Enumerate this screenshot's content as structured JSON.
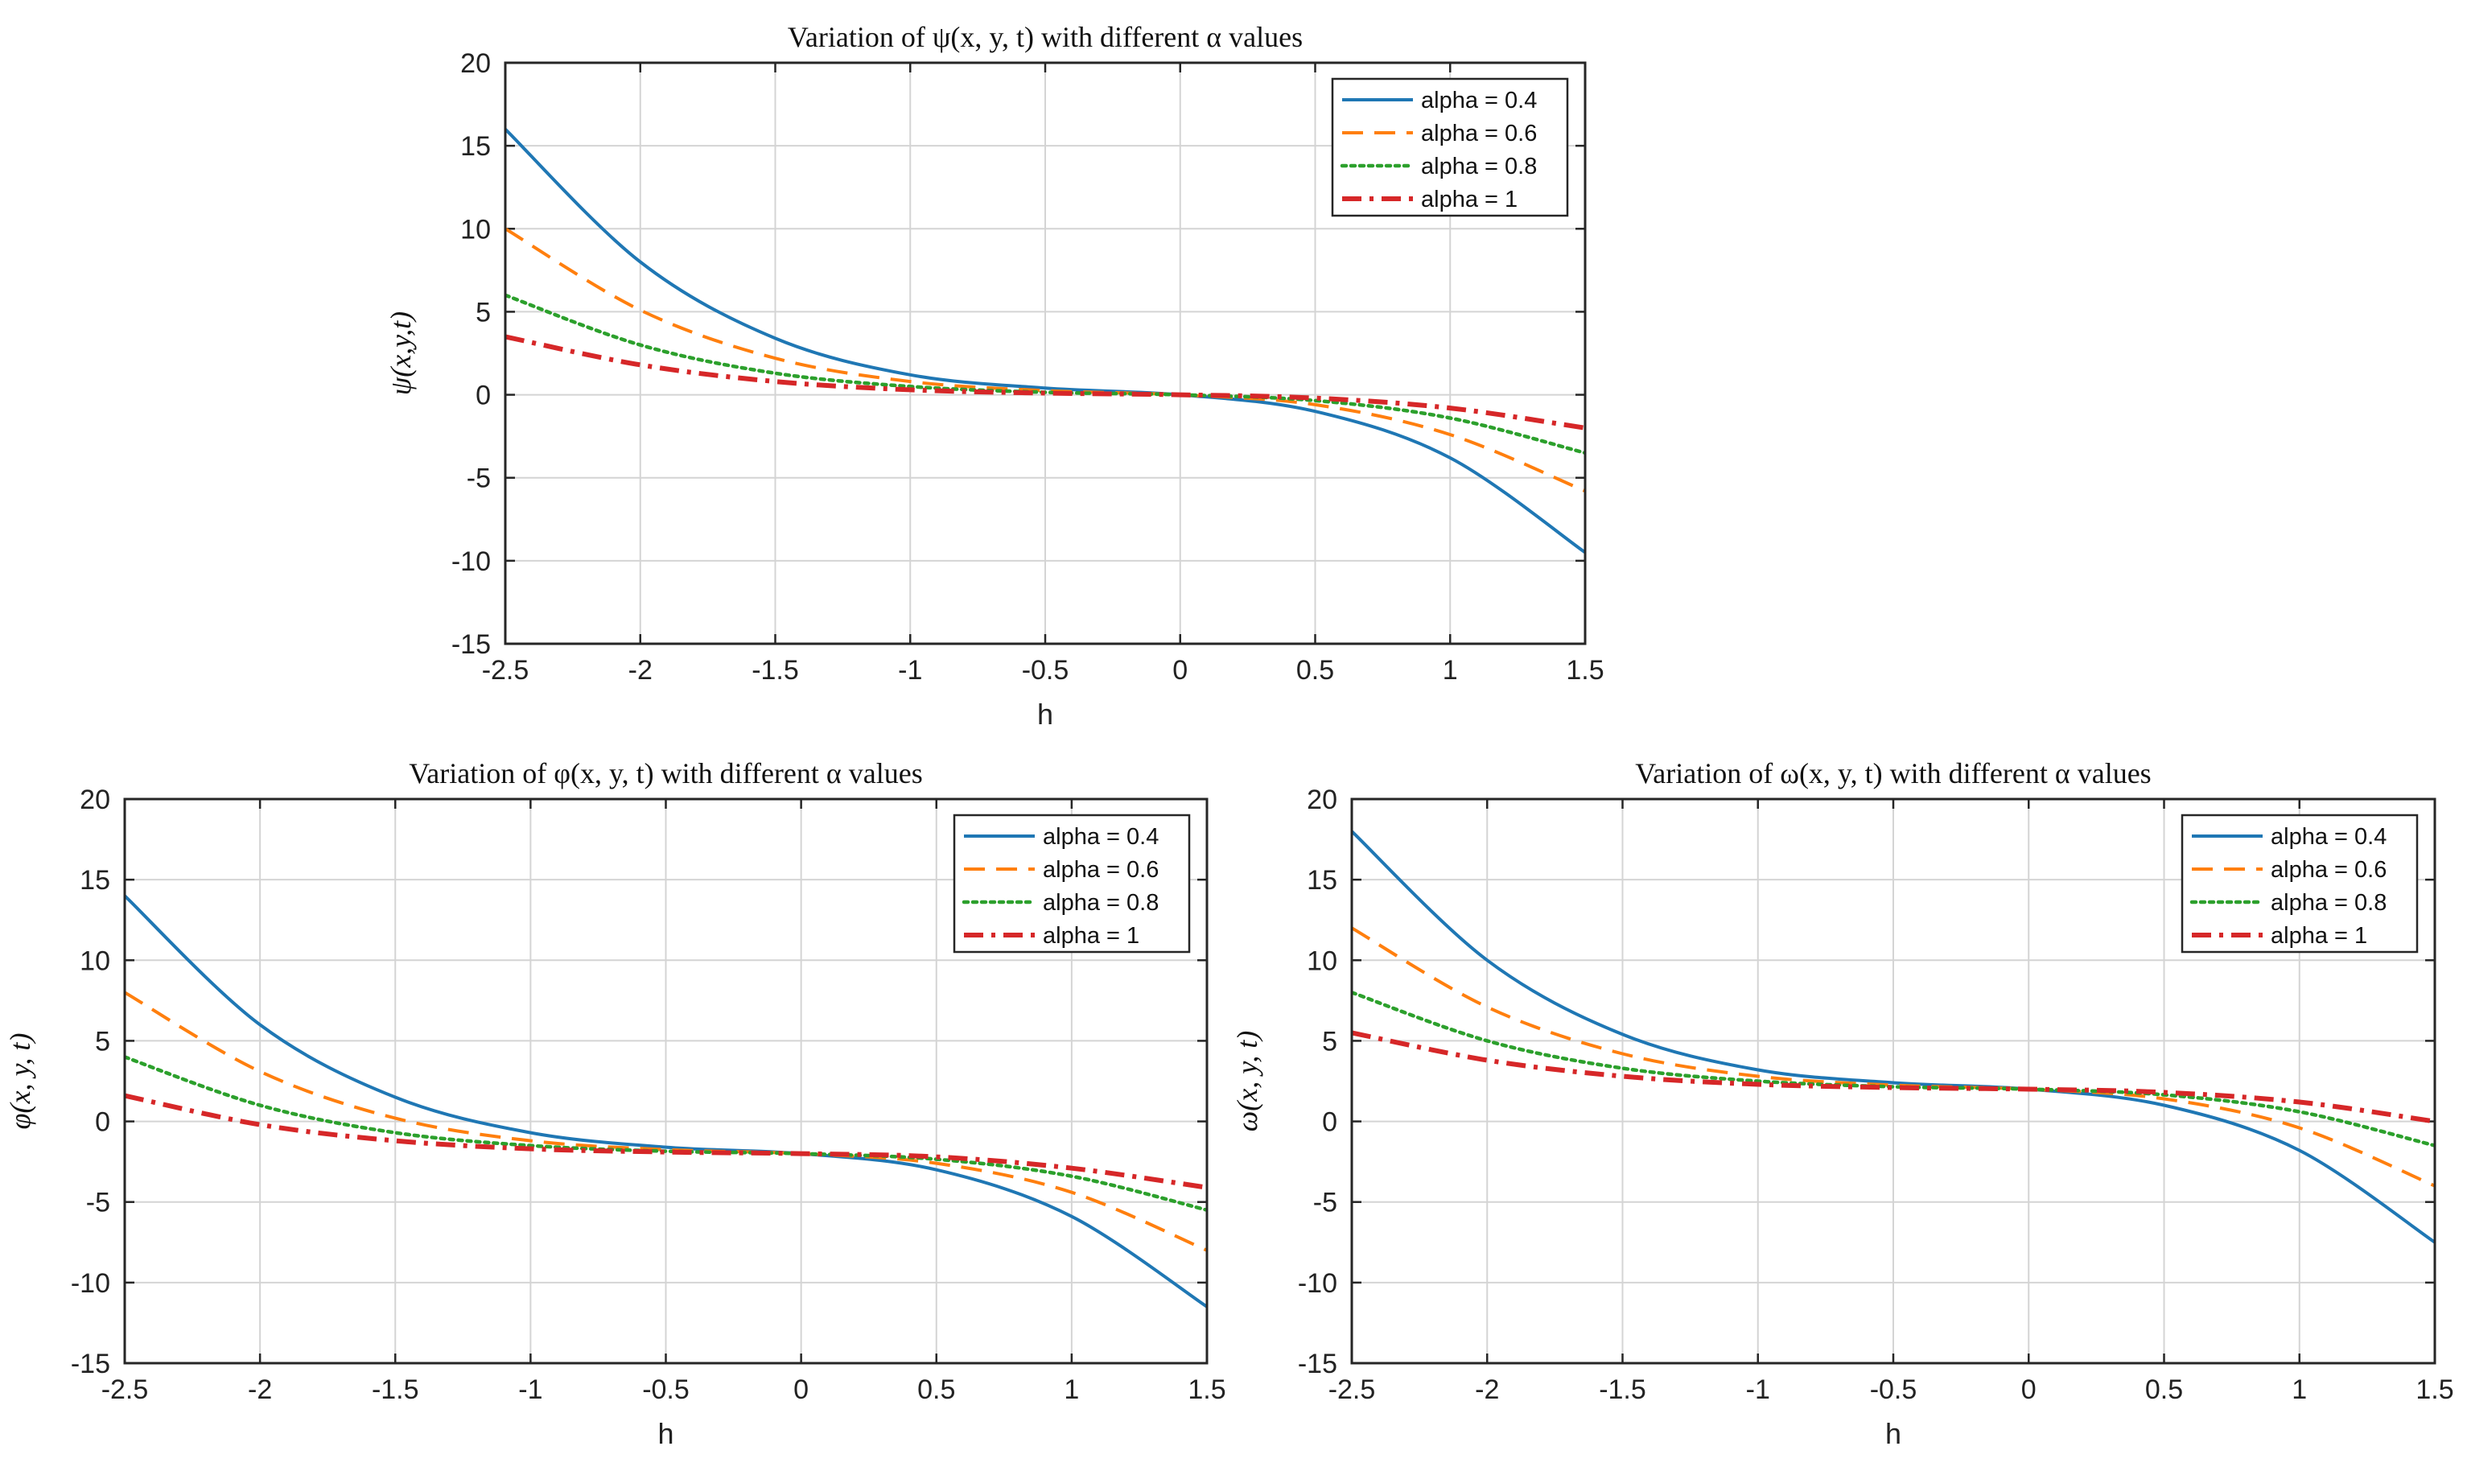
{
  "figure": {
    "series_styles": [
      {
        "name": "alpha = 0.4",
        "color": "#1f77b4",
        "dash": "solid"
      },
      {
        "name": "alpha = 0.6",
        "color": "#ff7f0e",
        "dash": "dashed"
      },
      {
        "name": "alpha = 0.8",
        "color": "#2ca02c",
        "dash": "dotted"
      },
      {
        "name": "alpha = 1",
        "color": "#d62728",
        "dash": "dashdot"
      }
    ]
  },
  "chart_data": [
    {
      "id": "psi",
      "type": "line",
      "title": "Variation of ψ(x, y, t) with different α values",
      "xlabel": "h",
      "ylabel": "ψ(x,y,t)",
      "xlim": [
        -2.5,
        1.5
      ],
      "ylim": [
        -15,
        20
      ],
      "xticks": [
        "-2.5",
        "-2",
        "-1.5",
        "-1",
        "-0.5",
        "0",
        "0.5",
        "1",
        "1.5"
      ],
      "yticks": [
        "20",
        "15",
        "10",
        "5",
        "0",
        "-5",
        "-10",
        "-15"
      ],
      "grid": true,
      "legend_position": "top-right",
      "x": [
        -2.5,
        -2.0,
        -1.5,
        -1.0,
        -0.5,
        0.0,
        0.5,
        1.0,
        1.5
      ],
      "series": [
        {
          "name": "alpha = 0.4",
          "values": [
            16.0,
            8.0,
            3.4,
            1.2,
            0.4,
            0.0,
            -1.0,
            -3.8,
            -9.5
          ]
        },
        {
          "name": "alpha = 0.6",
          "values": [
            10.0,
            5.1,
            2.2,
            0.8,
            0.25,
            0.0,
            -0.6,
            -2.4,
            -5.8
          ]
        },
        {
          "name": "alpha = 0.8",
          "values": [
            6.0,
            3.0,
            1.3,
            0.5,
            0.15,
            0.0,
            -0.35,
            -1.4,
            -3.5
          ]
        },
        {
          "name": "alpha = 1",
          "values": [
            3.5,
            1.8,
            0.8,
            0.3,
            0.1,
            0.0,
            -0.2,
            -0.8,
            -2.0
          ]
        }
      ]
    },
    {
      "id": "phi",
      "type": "line",
      "title": "Variation of φ(x, y, t) with different α values",
      "xlabel": "h",
      "ylabel": "φ(x, y, t)",
      "xlim": [
        -2.5,
        1.5
      ],
      "ylim": [
        -15,
        20
      ],
      "xticks": [
        "-2.5",
        "-2",
        "-1.5",
        "-1",
        "-0.5",
        "0",
        "0.5",
        "1",
        "1.5"
      ],
      "yticks": [
        "20",
        "15",
        "10",
        "5",
        "0",
        "-5",
        "-10",
        "-15"
      ],
      "grid": true,
      "legend_position": "top-right",
      "x": [
        -2.5,
        -2.0,
        -1.5,
        -1.0,
        -0.5,
        0.0,
        0.5,
        1.0,
        1.5
      ],
      "series": [
        {
          "name": "alpha = 0.4",
          "values": [
            14.0,
            6.0,
            1.5,
            -0.7,
            -1.6,
            -2.0,
            -3.0,
            -5.9,
            -11.5
          ]
        },
        {
          "name": "alpha = 0.6",
          "values": [
            8.0,
            3.1,
            0.2,
            -1.2,
            -1.75,
            -2.0,
            -2.6,
            -4.4,
            -8.0
          ]
        },
        {
          "name": "alpha = 0.8",
          "values": [
            4.0,
            1.0,
            -0.7,
            -1.5,
            -1.85,
            -2.0,
            -2.35,
            -3.4,
            -5.5
          ]
        },
        {
          "name": "alpha = 1",
          "values": [
            1.6,
            -0.2,
            -1.2,
            -1.7,
            -1.9,
            -2.0,
            -2.2,
            -2.9,
            -4.1
          ]
        }
      ]
    },
    {
      "id": "omega",
      "type": "line",
      "title": "Variation of ω(x, y, t) with different α values",
      "xlabel": "h",
      "ylabel": "ω(x, y, t)",
      "xlim": [
        -2.5,
        1.5
      ],
      "ylim": [
        -15,
        20
      ],
      "xticks": [
        "-2.5",
        "-2",
        "-1.5",
        "-1",
        "-0.5",
        "0",
        "0.5",
        "1",
        "1.5"
      ],
      "yticks": [
        "20",
        "15",
        "10",
        "5",
        "0",
        "-5",
        "-10",
        "-15"
      ],
      "grid": true,
      "legend_position": "top-right",
      "x": [
        -2.5,
        -2.0,
        -1.5,
        -1.0,
        -0.5,
        0.0,
        0.5,
        1.0,
        1.5
      ],
      "series": [
        {
          "name": "alpha = 0.4",
          "values": [
            18.0,
            10.0,
            5.4,
            3.2,
            2.4,
            2.0,
            1.0,
            -1.8,
            -7.5
          ]
        },
        {
          "name": "alpha = 0.6",
          "values": [
            12.0,
            7.1,
            4.2,
            2.8,
            2.25,
            2.0,
            1.4,
            -0.4,
            -4.0
          ]
        },
        {
          "name": "alpha = 0.8",
          "values": [
            8.0,
            5.0,
            3.3,
            2.5,
            2.15,
            2.0,
            1.65,
            0.6,
            -1.5
          ]
        },
        {
          "name": "alpha = 1",
          "values": [
            5.5,
            3.8,
            2.8,
            2.3,
            2.1,
            2.0,
            1.8,
            1.2,
            0.0
          ]
        }
      ]
    }
  ]
}
